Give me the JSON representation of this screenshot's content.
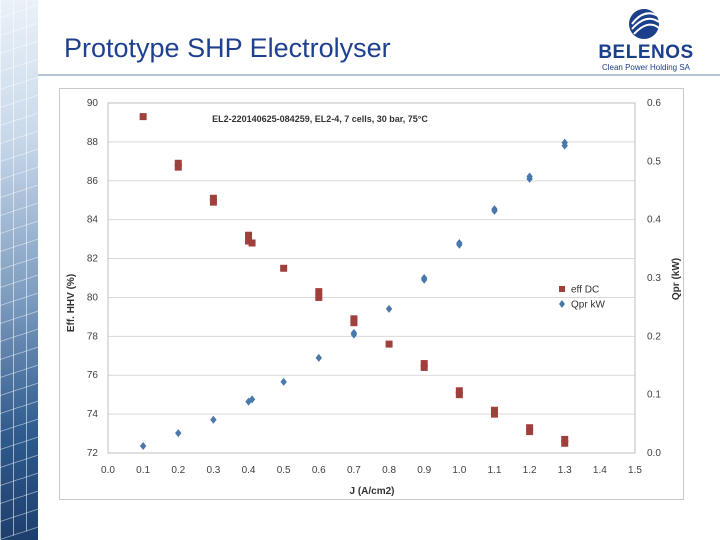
{
  "slide": {
    "title": "Prototype SHP Electrolyser",
    "logo": {
      "word": "BELENOS",
      "subtitle": "Clean Power Holding SA"
    }
  },
  "chart_data": {
    "type": "scatter",
    "title": "EL2-220140625-084259, EL2-4, 7 cells, 30 bar, 75°C",
    "xlabel": "J (A/cm2)",
    "ylabel": "Eff. HHV (%)",
    "y2label": "Qpr (kW)",
    "xlim": [
      0.0,
      1.5
    ],
    "ylim": [
      72,
      90
    ],
    "y2lim": [
      0.0,
      0.6
    ],
    "x_ticks": [
      "0.0",
      "0.1",
      "0.2",
      "0.3",
      "0.4",
      "0.5",
      "0.6",
      "0.7",
      "0.8",
      "0.9",
      "1.0",
      "1.1",
      "1.2",
      "1.3",
      "1.4",
      "1.5"
    ],
    "y_ticks": [
      "72",
      "74",
      "76",
      "78",
      "80",
      "82",
      "84",
      "86",
      "88",
      "90"
    ],
    "y2_ticks": [
      "0.0",
      "0.1",
      "0.2",
      "0.3",
      "0.4",
      "0.5",
      "0.6"
    ],
    "grid": "horizontal",
    "legend_position": "right",
    "series": [
      {
        "name": "eff DC",
        "axis": "left",
        "marker": "square",
        "color": "#a0403d",
        "x": [
          0.1,
          0.2,
          0.2,
          0.3,
          0.3,
          0.4,
          0.4,
          0.41,
          0.5,
          0.6,
          0.6,
          0.7,
          0.7,
          0.8,
          0.9,
          0.9,
          1.0,
          1.0,
          1.1,
          1.1,
          1.2,
          1.2,
          1.3,
          1.3
        ],
        "y": [
          89.3,
          86.9,
          86.7,
          85.1,
          84.9,
          83.2,
          82.9,
          82.8,
          81.5,
          80.3,
          80.0,
          78.9,
          78.7,
          77.6,
          76.6,
          76.4,
          75.2,
          75.0,
          74.2,
          74.0,
          73.3,
          73.1,
          72.7,
          72.5
        ]
      },
      {
        "name": "Qpr kW",
        "axis": "right",
        "marker": "diamond",
        "color": "#4a78ab",
        "x": [
          0.1,
          0.2,
          0.3,
          0.4,
          0.41,
          0.5,
          0.6,
          0.7,
          0.7,
          0.8,
          0.9,
          0.9,
          1.0,
          1.0,
          1.1,
          1.1,
          1.2,
          1.2,
          1.3,
          1.3
        ],
        "y": [
          0.012,
          0.034,
          0.057,
          0.088,
          0.092,
          0.122,
          0.163,
          0.203,
          0.206,
          0.247,
          0.297,
          0.3,
          0.357,
          0.36,
          0.415,
          0.418,
          0.47,
          0.474,
          0.527,
          0.532
        ]
      }
    ]
  }
}
